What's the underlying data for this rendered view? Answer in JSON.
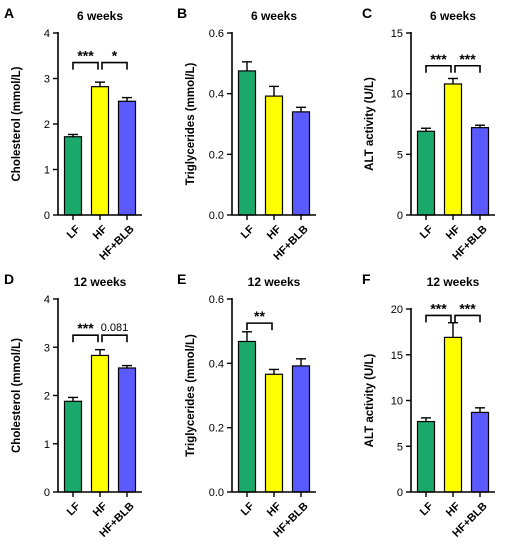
{
  "chart_data": [
    {
      "type": "bar",
      "letter": "A",
      "title": "6 weeks",
      "ylabel": "Cholesterol (mmol/L)",
      "categories": [
        "LF",
        "HF",
        "HF+BLB"
      ],
      "values": [
        1.72,
        2.82,
        2.5
      ],
      "errors": [
        0.05,
        0.1,
        0.08
      ],
      "colors": [
        "#1aa96b",
        "#ffff00",
        "#5a5aff"
      ],
      "ylim": [
        0,
        4
      ],
      "yticks": [
        "0",
        "1",
        "2",
        "3",
        "4"
      ],
      "comparisons": [
        {
          "from": 0,
          "to": 1,
          "label": "***"
        },
        {
          "from": 1,
          "to": 2,
          "label": "*"
        }
      ],
      "bracket_y": 3.35
    },
    {
      "type": "bar",
      "letter": "B",
      "title": "6 weeks",
      "ylabel": "Triglycerides (mmol/L)",
      "categories": [
        "LF",
        "HF",
        "HF+BLB"
      ],
      "values": [
        0.475,
        0.392,
        0.34
      ],
      "errors": [
        0.03,
        0.032,
        0.015
      ],
      "colors": [
        "#1aa96b",
        "#ffff00",
        "#5a5aff"
      ],
      "ylim": [
        0,
        0.6
      ],
      "yticks": [
        "0.0",
        "0.2",
        "0.4",
        "0.6"
      ],
      "comparisons": [],
      "bracket_y": 0
    },
    {
      "type": "bar",
      "letter": "C",
      "title": "6 weeks",
      "ylabel": "ALT activity (U/L)",
      "categories": [
        "LF",
        "HF",
        "HF+BLB"
      ],
      "values": [
        6.9,
        10.8,
        7.2
      ],
      "errors": [
        0.25,
        0.45,
        0.2
      ],
      "colors": [
        "#1aa96b",
        "#ffff00",
        "#5a5aff"
      ],
      "ylim": [
        0,
        15
      ],
      "yticks": [
        "0",
        "5",
        "10",
        "15"
      ],
      "comparisons": [
        {
          "from": 0,
          "to": 1,
          "label": "***"
        },
        {
          "from": 1,
          "to": 2,
          "label": "***"
        }
      ],
      "bracket_y": 12.3
    },
    {
      "type": "bar",
      "letter": "D",
      "title": "12 weeks",
      "ylabel": "Cholesterol (mmol/L)",
      "categories": [
        "LF",
        "HF",
        "HF+BLB"
      ],
      "values": [
        1.88,
        2.83,
        2.57
      ],
      "errors": [
        0.08,
        0.12,
        0.05
      ],
      "colors": [
        "#1aa96b",
        "#ffff00",
        "#5a5aff"
      ],
      "ylim": [
        0,
        4
      ],
      "yticks": [
        "0",
        "1",
        "2",
        "3",
        "4"
      ],
      "comparisons": [
        {
          "from": 0,
          "to": 1,
          "label": "***"
        },
        {
          "from": 1,
          "to": 2,
          "label": "0.081"
        }
      ],
      "bracket_y": 3.25
    },
    {
      "type": "bar",
      "letter": "E",
      "title": "12 weeks",
      "ylabel": "Triglycerides (mmol/L)",
      "categories": [
        "LF",
        "HF",
        "HF+BLB"
      ],
      "values": [
        0.468,
        0.366,
        0.392
      ],
      "errors": [
        0.03,
        0.015,
        0.022
      ],
      "colors": [
        "#1aa96b",
        "#ffff00",
        "#5a5aff"
      ],
      "ylim": [
        0,
        0.6
      ],
      "yticks": [
        "0.0",
        "0.2",
        "0.4",
        "0.6"
      ],
      "comparisons": [
        {
          "from": 0,
          "to": 1,
          "label": "**"
        }
      ],
      "bracket_y": 0.525
    },
    {
      "type": "bar",
      "letter": "F",
      "title": "12 weeks",
      "ylabel": "ALT activity (U/L)",
      "categories": [
        "LF",
        "HF",
        "HF+BLB"
      ],
      "values": [
        7.7,
        16.9,
        8.7
      ],
      "errors": [
        0.4,
        1.6,
        0.5
      ],
      "colors": [
        "#1aa96b",
        "#ffff00",
        "#5a5aff"
      ],
      "ylim": [
        0,
        20
      ],
      "yticks": [
        "0",
        "5",
        "10",
        "15",
        "20"
      ],
      "comparisons": [
        {
          "from": 0,
          "to": 1,
          "label": "***"
        },
        {
          "from": 1,
          "to": 2,
          "label": "***"
        }
      ],
      "bracket_y": 19.3
    }
  ]
}
